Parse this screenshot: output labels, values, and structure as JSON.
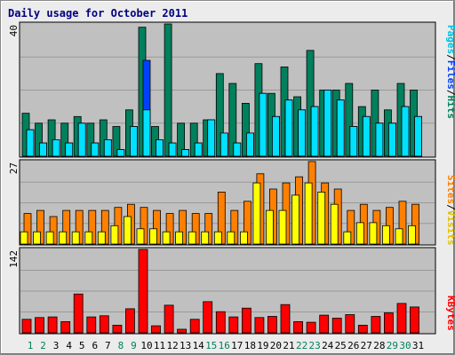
{
  "chart_data": {
    "type": "bar",
    "title": "Daily usage for October 2011",
    "categories": [
      "1",
      "2",
      "3",
      "4",
      "5",
      "6",
      "7",
      "8",
      "9",
      "10",
      "11",
      "12",
      "13",
      "14",
      "15",
      "16",
      "17",
      "18",
      "19",
      "20",
      "21",
      "22",
      "23",
      "24",
      "25",
      "26",
      "27",
      "28",
      "29",
      "30",
      "31"
    ],
    "weekend_days": [
      "1",
      "2",
      "8",
      "9",
      "15",
      "16",
      "22",
      "23",
      "29",
      "30"
    ],
    "panels": [
      {
        "id": "hits-files-pages",
        "max_label": "40",
        "ylim": [
          0,
          40
        ],
        "legend": [
          "Pages",
          "/",
          "Files",
          "/",
          "Hits"
        ],
        "series": [
          {
            "name": "Hits",
            "color": "#00805c",
            "values": [
              13,
              10,
              11,
              10,
              12,
              10,
              11,
              9,
              14,
              39,
              9,
              40,
              10,
              10,
              11,
              25,
              22,
              16,
              28,
              19,
              27,
              18,
              32,
              20,
              20,
              22,
              15,
              20,
              14,
              22,
              20
            ]
          },
          {
            "name": "Files",
            "color": "#0040ff",
            "values": [
              8,
              4,
              5,
              4,
              10,
              4,
              5,
              2,
              9,
              29,
              5,
              4,
              2,
              4,
              11,
              7,
              4,
              7,
              19,
              12,
              17,
              14,
              15,
              20,
              17,
              9,
              12,
              10,
              10,
              15,
              12
            ]
          },
          {
            "name": "Pages",
            "color": "#00e0ff",
            "values": [
              8,
              4,
              5,
              4,
              10,
              4,
              5,
              2,
              9,
              14,
              5,
              4,
              2,
              4,
              11,
              7,
              4,
              7,
              19,
              12,
              17,
              14,
              15,
              20,
              17,
              9,
              12,
              10,
              10,
              15,
              12
            ]
          }
        ]
      },
      {
        "id": "visits-sites",
        "max_label": "27",
        "ylim": [
          0,
          27
        ],
        "legend": [
          "Sites",
          "/",
          "Visits"
        ],
        "series": [
          {
            "name": "Visits",
            "color": "#ff8000",
            "values": [
              10,
              11,
              9,
              11,
              11,
              11,
              11,
              12,
              13,
              12,
              11,
              10,
              11,
              10,
              10,
              17,
              11,
              14,
              23,
              18,
              20,
              22,
              27,
              20,
              18,
              11,
              13,
              11,
              12,
              14,
              13
            ]
          },
          {
            "name": "Sites",
            "color": "#ffff00",
            "values": [
              4,
              4,
              4,
              4,
              4,
              4,
              4,
              6,
              9,
              5,
              5,
              4,
              4,
              4,
              4,
              4,
              4,
              4,
              20,
              11,
              11,
              16,
              20,
              17,
              13,
              4,
              7,
              7,
              6,
              5,
              6
            ]
          }
        ]
      },
      {
        "id": "kbytes",
        "max_label": "142",
        "ylim": [
          0,
          142
        ],
        "legend": [
          "KBytes"
        ],
        "series": [
          {
            "name": "KBytes",
            "color": "#ff0000",
            "values": [
              23,
              26,
              27,
              19,
              66,
              27,
              29,
              13,
              41,
              142,
              12,
              47,
              6,
              23,
              53,
              36,
              27,
              42,
              26,
              28,
              48,
              19,
              18,
              30,
              25,
              31,
              13,
              28,
              34,
              50,
              44
            ]
          }
        ]
      }
    ]
  }
}
